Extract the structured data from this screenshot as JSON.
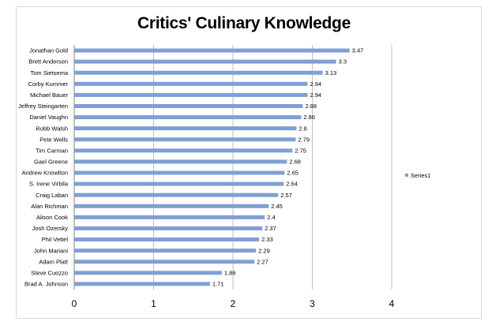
{
  "chart_data": {
    "type": "bar",
    "orientation": "horizontal",
    "title": "Critics' Culinary Knowledge",
    "categories": [
      "Jonathan Gold",
      "Brett Anderson",
      "Tom Sietsema",
      "Corby Kummer",
      "Michael Bauer",
      "Jeffrey Steingarten",
      "Daniel Vaughn",
      "Robb Walsh",
      "Pete Wells",
      "Tim Carman",
      "Gael Greene",
      "Andrew Knowlton",
      "S. Irene Virbila",
      "Craig Laban",
      "Alan Richman",
      "Alison Cook",
      "Josh Ozersky",
      "Phil Vettel",
      "John Mariani",
      "Adam Platt",
      "Steve Cuozzo",
      "Brad A. Johnson"
    ],
    "series": [
      {
        "name": "Series1",
        "color": "#7f9fd6",
        "values": [
          3.47,
          3.3,
          3.13,
          2.94,
          2.94,
          2.88,
          2.86,
          2.8,
          2.79,
          2.75,
          2.68,
          2.65,
          2.64,
          2.57,
          2.45,
          2.4,
          2.37,
          2.33,
          2.29,
          2.27,
          1.86,
          1.71
        ]
      }
    ],
    "xlim": [
      0,
      4
    ],
    "xticks": [
      "0",
      "1",
      "2",
      "3",
      "4"
    ],
    "grid": "vertical",
    "legend": "right",
    "data_labels": true
  }
}
